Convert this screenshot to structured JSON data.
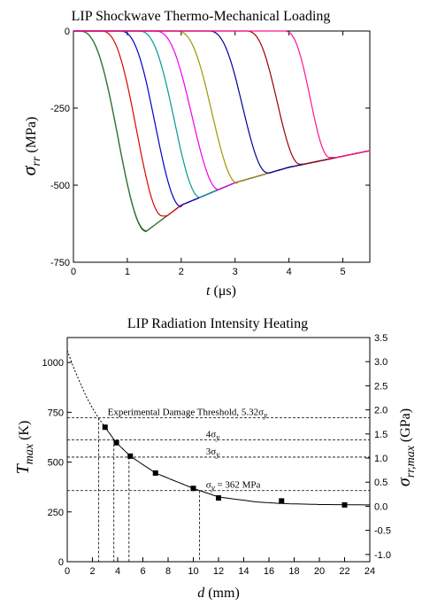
{
  "chart_data": [
    {
      "type": "line",
      "title": "LIP Shockwave Thermo-Mechanical Loading",
      "xlabel": {
        "var": "t",
        "unit": " (μs)"
      },
      "ylabel": {
        "var": "σ",
        "sub": "rr",
        "unit": " (MPa)"
      },
      "xlim": [
        0,
        5.5
      ],
      "ylim": [
        -750,
        0
      ],
      "xticks": [
        0,
        1,
        2,
        3,
        4,
        5
      ],
      "yticks": [
        0,
        -250,
        -500,
        -750
      ],
      "grid": false,
      "legend": "none",
      "envelope": {
        "x": [
          1.35,
          2,
          3,
          4,
          5.5
        ],
        "y": [
          -650,
          -565,
          -492,
          -442,
          -388
        ]
      },
      "series": [
        {
          "color": "#000000",
          "onset": 0.1,
          "minimum": [
            1.35,
            -650
          ],
          "values_x": [
            0.1,
            0.5,
            1.0,
            1.35,
            2,
            3,
            4,
            5.5
          ],
          "values_y": [
            0,
            -115,
            -520,
            -650,
            -565,
            -492,
            -442,
            -388
          ]
        },
        {
          "color": "#2e7d32",
          "onset": 0.1,
          "minimum": [
            1.35,
            -648
          ],
          "values_x": [
            0.1,
            0.5,
            1.0,
            1.35,
            2,
            3,
            4,
            5.5
          ],
          "values_y": [
            0,
            -113,
            -517,
            -648,
            -565,
            -492,
            -442,
            -388
          ]
        },
        {
          "color": "#e00000",
          "onset": 0.5,
          "minimum": [
            1.65,
            -600
          ],
          "values_x": [
            0.5,
            1.0,
            1.4,
            1.65,
            2,
            3,
            4,
            5.5
          ],
          "values_y": [
            0,
            -150,
            -500,
            -600,
            -565,
            -492,
            -442,
            -388
          ]
        },
        {
          "color": "#0000cc",
          "onset": 0.85,
          "minimum": [
            2.0,
            -570
          ],
          "values_x": [
            0.85,
            1.3,
            1.75,
            2.0,
            3,
            4,
            5.5
          ],
          "values_y": [
            0,
            -140,
            -490,
            -570,
            -492,
            -442,
            -388
          ]
        },
        {
          "color": "#009999",
          "onset": 1.2,
          "minimum": [
            2.35,
            -540
          ],
          "values_x": [
            1.2,
            1.7,
            2.1,
            2.35,
            3,
            4,
            5.5
          ],
          "values_y": [
            0,
            -160,
            -470,
            -540,
            -492,
            -442,
            -388
          ]
        },
        {
          "color": "#ee00ee",
          "onset": 1.5,
          "minimum": [
            2.7,
            -515
          ],
          "values_x": [
            1.5,
            2.0,
            2.45,
            2.7,
            3,
            4,
            5.5
          ],
          "values_y": [
            0,
            -150,
            -450,
            -515,
            -492,
            -442,
            -388
          ]
        },
        {
          "color": "#999900",
          "onset": 1.9,
          "minimum": [
            3.05,
            -495
          ],
          "values_x": [
            1.9,
            2.4,
            2.8,
            3.05,
            4,
            5.5
          ],
          "values_y": [
            0,
            -160,
            -430,
            -495,
            -442,
            -388
          ]
        },
        {
          "color": "#000099",
          "onset": 2.5,
          "minimum": [
            3.6,
            -460
          ],
          "values_x": [
            2.5,
            3.0,
            3.4,
            3.6,
            4,
            5.5
          ],
          "values_y": [
            0,
            -150,
            -410,
            -460,
            -442,
            -388
          ]
        },
        {
          "color": "#990000",
          "onset": 3.2,
          "minimum": [
            4.2,
            -432
          ],
          "values_x": [
            3.2,
            3.7,
            4.0,
            4.2,
            5.5
          ],
          "values_y": [
            0,
            -150,
            -380,
            -432,
            -388
          ]
        },
        {
          "color": "#ff1493",
          "onset": 3.9,
          "minimum": [
            4.75,
            -410
          ],
          "values_x": [
            3.9,
            4.3,
            4.6,
            4.75,
            5.5
          ],
          "values_y": [
            0,
            -140,
            -350,
            -410,
            -388
          ]
        }
      ]
    },
    {
      "type": "scatter",
      "title": "LIP Radiation Intensity Heating",
      "xlabel": {
        "var": "d",
        "unit": " (mm)"
      },
      "ylabel": {
        "var": "T",
        "sub": "max",
        "unit": " (K)"
      },
      "y2label": {
        "var": "σ",
        "sub": "rr,max",
        "unit": " (GPa)"
      },
      "xlim": [
        0,
        24
      ],
      "ylim": [
        0,
        1125
      ],
      "y2lim": [
        -1.15,
        3.5
      ],
      "xticks": [
        0,
        2,
        4,
        6,
        8,
        10,
        12,
        14,
        16,
        18,
        20,
        22,
        24
      ],
      "yticks": [
        0,
        250,
        500,
        750,
        1000
      ],
      "y2ticks": [
        -1.0,
        -0.5,
        0.0,
        0.5,
        1.0,
        1.5,
        2.0,
        2.5,
        3.0,
        3.5
      ],
      "points": {
        "x": [
          3,
          3.9,
          5,
          7,
          10,
          12,
          17,
          22
        ],
        "y": [
          675,
          597,
          530,
          445,
          368,
          320,
          305,
          285
        ]
      },
      "fit": {
        "x": [
          3,
          3.9,
          5,
          7,
          10,
          12,
          15,
          17,
          20,
          24
        ],
        "y": [
          675,
          597,
          530,
          445,
          368,
          325,
          300,
          292,
          287,
          285
        ]
      },
      "extrapolation": {
        "x": [
          0,
          0.5,
          1,
          1.5,
          2,
          2.5,
          3
        ],
        "y": [
          1060,
          975,
          900,
          830,
          770,
          720,
          675
        ]
      },
      "thresholds": [
        {
          "label": "Experimental Damage Threshold, 5.32σ",
          "sub": "y",
          "y": 722,
          "d": 2.5
        },
        {
          "label": "4σ",
          "sub": "y",
          "y": 612,
          "d": 3.7
        },
        {
          "label": "3σ",
          "sub": "y",
          "y": 525,
          "d": 4.9
        },
        {
          "label": "σ",
          "sub": "y",
          "suffix": " = 362 MPa",
          "y": 357,
          "d": 10.5
        }
      ]
    }
  ]
}
